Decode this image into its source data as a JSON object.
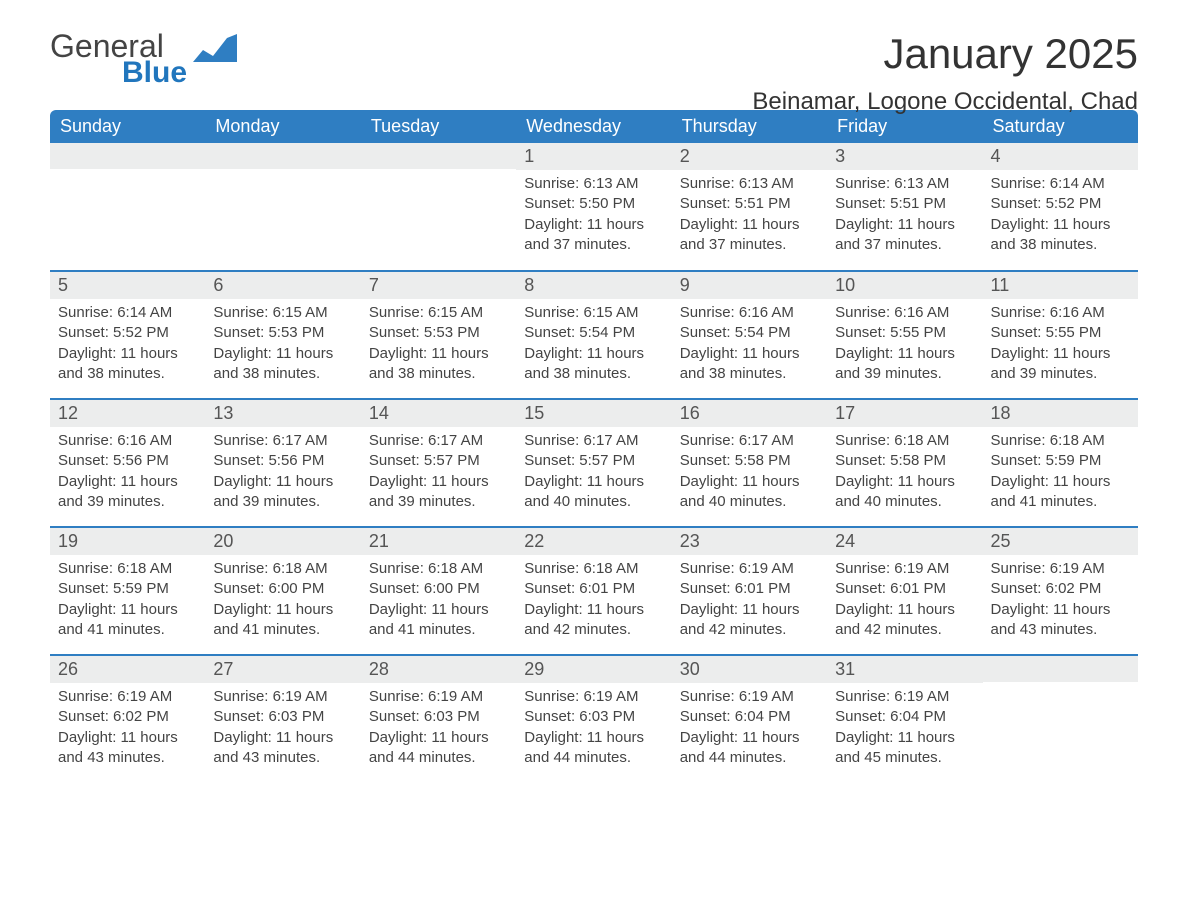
{
  "logo": {
    "text1": "General",
    "text2": "Blue",
    "color_gray": "#444444",
    "color_blue": "#2176bd"
  },
  "title": "January 2025",
  "location": "Beinamar, Logone Occidental, Chad",
  "theme": {
    "header_bg": "#2f7ec2",
    "header_fg": "#ffffff",
    "daynum_bg": "#eceded",
    "border_color": "#2f7ec2",
    "text_color": "#444444"
  },
  "day_headers": [
    "Sunday",
    "Monday",
    "Tuesday",
    "Wednesday",
    "Thursday",
    "Friday",
    "Saturday"
  ],
  "weeks": [
    [
      {
        "day": "",
        "sunrise": "",
        "sunset": "",
        "daylight": ""
      },
      {
        "day": "",
        "sunrise": "",
        "sunset": "",
        "daylight": ""
      },
      {
        "day": "",
        "sunrise": "",
        "sunset": "",
        "daylight": ""
      },
      {
        "day": "1",
        "sunrise": "Sunrise: 6:13 AM",
        "sunset": "Sunset: 5:50 PM",
        "daylight": "Daylight: 11 hours and 37 minutes."
      },
      {
        "day": "2",
        "sunrise": "Sunrise: 6:13 AM",
        "sunset": "Sunset: 5:51 PM",
        "daylight": "Daylight: 11 hours and 37 minutes."
      },
      {
        "day": "3",
        "sunrise": "Sunrise: 6:13 AM",
        "sunset": "Sunset: 5:51 PM",
        "daylight": "Daylight: 11 hours and 37 minutes."
      },
      {
        "day": "4",
        "sunrise": "Sunrise: 6:14 AM",
        "sunset": "Sunset: 5:52 PM",
        "daylight": "Daylight: 11 hours and 38 minutes."
      }
    ],
    [
      {
        "day": "5",
        "sunrise": "Sunrise: 6:14 AM",
        "sunset": "Sunset: 5:52 PM",
        "daylight": "Daylight: 11 hours and 38 minutes."
      },
      {
        "day": "6",
        "sunrise": "Sunrise: 6:15 AM",
        "sunset": "Sunset: 5:53 PM",
        "daylight": "Daylight: 11 hours and 38 minutes."
      },
      {
        "day": "7",
        "sunrise": "Sunrise: 6:15 AM",
        "sunset": "Sunset: 5:53 PM",
        "daylight": "Daylight: 11 hours and 38 minutes."
      },
      {
        "day": "8",
        "sunrise": "Sunrise: 6:15 AM",
        "sunset": "Sunset: 5:54 PM",
        "daylight": "Daylight: 11 hours and 38 minutes."
      },
      {
        "day": "9",
        "sunrise": "Sunrise: 6:16 AM",
        "sunset": "Sunset: 5:54 PM",
        "daylight": "Daylight: 11 hours and 38 minutes."
      },
      {
        "day": "10",
        "sunrise": "Sunrise: 6:16 AM",
        "sunset": "Sunset: 5:55 PM",
        "daylight": "Daylight: 11 hours and 39 minutes."
      },
      {
        "day": "11",
        "sunrise": "Sunrise: 6:16 AM",
        "sunset": "Sunset: 5:55 PM",
        "daylight": "Daylight: 11 hours and 39 minutes."
      }
    ],
    [
      {
        "day": "12",
        "sunrise": "Sunrise: 6:16 AM",
        "sunset": "Sunset: 5:56 PM",
        "daylight": "Daylight: 11 hours and 39 minutes."
      },
      {
        "day": "13",
        "sunrise": "Sunrise: 6:17 AM",
        "sunset": "Sunset: 5:56 PM",
        "daylight": "Daylight: 11 hours and 39 minutes."
      },
      {
        "day": "14",
        "sunrise": "Sunrise: 6:17 AM",
        "sunset": "Sunset: 5:57 PM",
        "daylight": "Daylight: 11 hours and 39 minutes."
      },
      {
        "day": "15",
        "sunrise": "Sunrise: 6:17 AM",
        "sunset": "Sunset: 5:57 PM",
        "daylight": "Daylight: 11 hours and 40 minutes."
      },
      {
        "day": "16",
        "sunrise": "Sunrise: 6:17 AM",
        "sunset": "Sunset: 5:58 PM",
        "daylight": "Daylight: 11 hours and 40 minutes."
      },
      {
        "day": "17",
        "sunrise": "Sunrise: 6:18 AM",
        "sunset": "Sunset: 5:58 PM",
        "daylight": "Daylight: 11 hours and 40 minutes."
      },
      {
        "day": "18",
        "sunrise": "Sunrise: 6:18 AM",
        "sunset": "Sunset: 5:59 PM",
        "daylight": "Daylight: 11 hours and 41 minutes."
      }
    ],
    [
      {
        "day": "19",
        "sunrise": "Sunrise: 6:18 AM",
        "sunset": "Sunset: 5:59 PM",
        "daylight": "Daylight: 11 hours and 41 minutes."
      },
      {
        "day": "20",
        "sunrise": "Sunrise: 6:18 AM",
        "sunset": "Sunset: 6:00 PM",
        "daylight": "Daylight: 11 hours and 41 minutes."
      },
      {
        "day": "21",
        "sunrise": "Sunrise: 6:18 AM",
        "sunset": "Sunset: 6:00 PM",
        "daylight": "Daylight: 11 hours and 41 minutes."
      },
      {
        "day": "22",
        "sunrise": "Sunrise: 6:18 AM",
        "sunset": "Sunset: 6:01 PM",
        "daylight": "Daylight: 11 hours and 42 minutes."
      },
      {
        "day": "23",
        "sunrise": "Sunrise: 6:19 AM",
        "sunset": "Sunset: 6:01 PM",
        "daylight": "Daylight: 11 hours and 42 minutes."
      },
      {
        "day": "24",
        "sunrise": "Sunrise: 6:19 AM",
        "sunset": "Sunset: 6:01 PM",
        "daylight": "Daylight: 11 hours and 42 minutes."
      },
      {
        "day": "25",
        "sunrise": "Sunrise: 6:19 AM",
        "sunset": "Sunset: 6:02 PM",
        "daylight": "Daylight: 11 hours and 43 minutes."
      }
    ],
    [
      {
        "day": "26",
        "sunrise": "Sunrise: 6:19 AM",
        "sunset": "Sunset: 6:02 PM",
        "daylight": "Daylight: 11 hours and 43 minutes."
      },
      {
        "day": "27",
        "sunrise": "Sunrise: 6:19 AM",
        "sunset": "Sunset: 6:03 PM",
        "daylight": "Daylight: 11 hours and 43 minutes."
      },
      {
        "day": "28",
        "sunrise": "Sunrise: 6:19 AM",
        "sunset": "Sunset: 6:03 PM",
        "daylight": "Daylight: 11 hours and 44 minutes."
      },
      {
        "day": "29",
        "sunrise": "Sunrise: 6:19 AM",
        "sunset": "Sunset: 6:03 PM",
        "daylight": "Daylight: 11 hours and 44 minutes."
      },
      {
        "day": "30",
        "sunrise": "Sunrise: 6:19 AM",
        "sunset": "Sunset: 6:04 PM",
        "daylight": "Daylight: 11 hours and 44 minutes."
      },
      {
        "day": "31",
        "sunrise": "Sunrise: 6:19 AM",
        "sunset": "Sunset: 6:04 PM",
        "daylight": "Daylight: 11 hours and 45 minutes."
      },
      {
        "day": "",
        "sunrise": "",
        "sunset": "",
        "daylight": ""
      }
    ]
  ]
}
